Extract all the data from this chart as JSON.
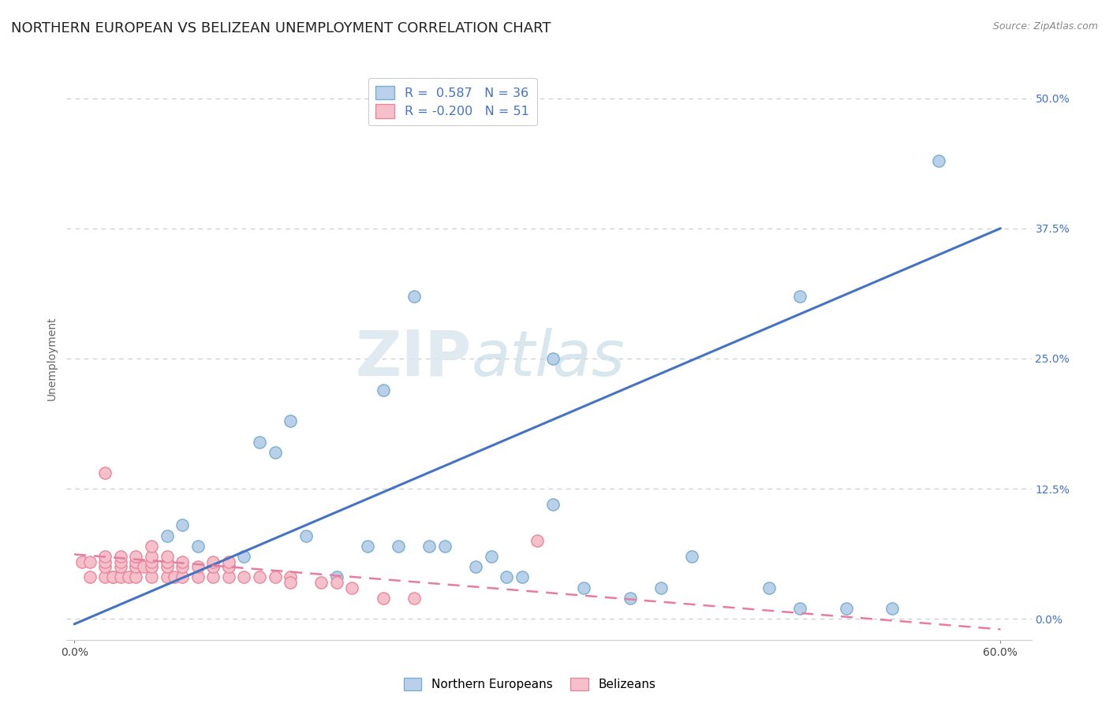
{
  "title": "NORTHERN EUROPEAN VS BELIZEAN UNEMPLOYMENT CORRELATION CHART",
  "source": "Source: ZipAtlas.com",
  "ylabel": "Unemployment",
  "xlim": [
    -0.005,
    0.62
  ],
  "ylim": [
    -0.02,
    0.52
  ],
  "xticks": [
    0.0,
    0.6
  ],
  "xticklabels": [
    "0.0%",
    "60.0%"
  ],
  "yticks": [
    0.0,
    0.125,
    0.25,
    0.375,
    0.5
  ],
  "yticklabels": [
    "0.0%",
    "12.5%",
    "25.0%",
    "37.5%",
    "50.0%"
  ],
  "blue_R": "0.587",
  "blue_N": "36",
  "pink_R": "-0.200",
  "pink_N": "51",
  "blue_marker_face": "#b8d0e8",
  "blue_marker_edge": "#7aaed4",
  "pink_marker_face": "#f5c0cc",
  "pink_marker_edge": "#e8879a",
  "blue_line_color": "#4472c4",
  "pink_line_color": "#e87ca0",
  "watermark_zip": "ZIP",
  "watermark_atlas": "atlas",
  "legend_label_blue": "Northern Europeans",
  "legend_label_pink": "Belizeans",
  "blue_scatter_x": [
    0.025,
    0.04,
    0.05,
    0.06,
    0.07,
    0.08,
    0.09,
    0.1,
    0.11,
    0.12,
    0.13,
    0.14,
    0.15,
    0.17,
    0.19,
    0.2,
    0.21,
    0.23,
    0.24,
    0.26,
    0.28,
    0.29,
    0.31,
    0.33,
    0.36,
    0.38,
    0.4,
    0.27,
    0.45,
    0.47,
    0.5,
    0.53,
    0.56,
    0.31,
    0.47,
    0.22
  ],
  "blue_scatter_y": [
    0.04,
    0.05,
    0.05,
    0.08,
    0.09,
    0.07,
    0.05,
    0.05,
    0.06,
    0.17,
    0.16,
    0.19,
    0.08,
    0.04,
    0.07,
    0.22,
    0.07,
    0.07,
    0.07,
    0.05,
    0.04,
    0.04,
    0.11,
    0.03,
    0.02,
    0.03,
    0.06,
    0.06,
    0.03,
    0.01,
    0.01,
    0.01,
    0.44,
    0.25,
    0.31,
    0.31
  ],
  "pink_scatter_x": [
    0.005,
    0.01,
    0.01,
    0.02,
    0.02,
    0.02,
    0.02,
    0.02,
    0.025,
    0.03,
    0.03,
    0.03,
    0.03,
    0.035,
    0.04,
    0.04,
    0.04,
    0.04,
    0.045,
    0.05,
    0.05,
    0.05,
    0.05,
    0.05,
    0.06,
    0.06,
    0.06,
    0.06,
    0.065,
    0.07,
    0.07,
    0.07,
    0.08,
    0.08,
    0.09,
    0.09,
    0.09,
    0.1,
    0.1,
    0.1,
    0.11,
    0.12,
    0.13,
    0.14,
    0.14,
    0.16,
    0.17,
    0.18,
    0.2,
    0.22,
    0.3
  ],
  "pink_scatter_y": [
    0.055,
    0.04,
    0.055,
    0.04,
    0.05,
    0.055,
    0.06,
    0.14,
    0.04,
    0.04,
    0.05,
    0.055,
    0.06,
    0.04,
    0.04,
    0.05,
    0.055,
    0.06,
    0.05,
    0.04,
    0.05,
    0.055,
    0.06,
    0.07,
    0.04,
    0.05,
    0.055,
    0.06,
    0.04,
    0.04,
    0.05,
    0.055,
    0.04,
    0.05,
    0.04,
    0.05,
    0.055,
    0.04,
    0.05,
    0.055,
    0.04,
    0.04,
    0.04,
    0.04,
    0.035,
    0.035,
    0.035,
    0.03,
    0.02,
    0.02,
    0.075
  ],
  "blue_trend_x": [
    0.0,
    0.6
  ],
  "blue_trend_y": [
    -0.005,
    0.375
  ],
  "pink_trend_x": [
    0.0,
    0.6
  ],
  "pink_trend_y": [
    0.062,
    -0.01
  ],
  "background_color": "#ffffff",
  "grid_color": "#c8c8c8",
  "title_fontsize": 13,
  "tick_fontsize": 10,
  "source_fontsize": 9
}
